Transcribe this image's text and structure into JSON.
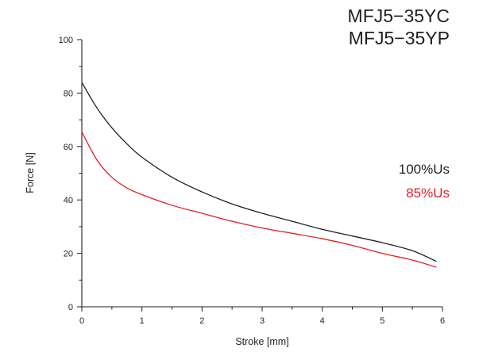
{
  "chart_data": {
    "type": "line",
    "title_lines": [
      "MFJ5−35YC",
      "MFJ5−35YP"
    ],
    "xlabel": "Stroke [mm]",
    "ylabel": "Force [N]",
    "xlim": [
      0,
      6
    ],
    "ylim": [
      0,
      100
    ],
    "x_ticks": [
      "0",
      "1",
      "2",
      "3",
      "4",
      "5",
      "6"
    ],
    "y_ticks": [
      "0",
      "20",
      "40",
      "60",
      "80",
      "100"
    ],
    "grid": false,
    "legend_position": "right",
    "series": [
      {
        "name": "100%Us",
        "color": "#231f20",
        "points": [
          [
            0,
            84
          ],
          [
            0.25,
            74.5
          ],
          [
            0.5,
            67
          ],
          [
            0.75,
            61
          ],
          [
            1,
            56
          ],
          [
            1.5,
            48.5
          ],
          [
            2,
            43
          ],
          [
            2.5,
            38.5
          ],
          [
            3,
            35
          ],
          [
            3.5,
            32
          ],
          [
            4,
            29
          ],
          [
            4.5,
            26.5
          ],
          [
            5,
            24
          ],
          [
            5.5,
            21
          ],
          [
            5.9,
            17
          ]
        ]
      },
      {
        "name": "85%Us",
        "color": "#e31e24",
        "points": [
          [
            0,
            65.5
          ],
          [
            0.25,
            55
          ],
          [
            0.5,
            48.5
          ],
          [
            0.75,
            44.5
          ],
          [
            1,
            42
          ],
          [
            1.5,
            38
          ],
          [
            2,
            35
          ],
          [
            2.5,
            32
          ],
          [
            3,
            29.5
          ],
          [
            3.5,
            27.5
          ],
          [
            4,
            25.5
          ],
          [
            4.5,
            23
          ],
          [
            5,
            20
          ],
          [
            5.5,
            17.5
          ],
          [
            5.9,
            14.8
          ]
        ]
      }
    ]
  }
}
